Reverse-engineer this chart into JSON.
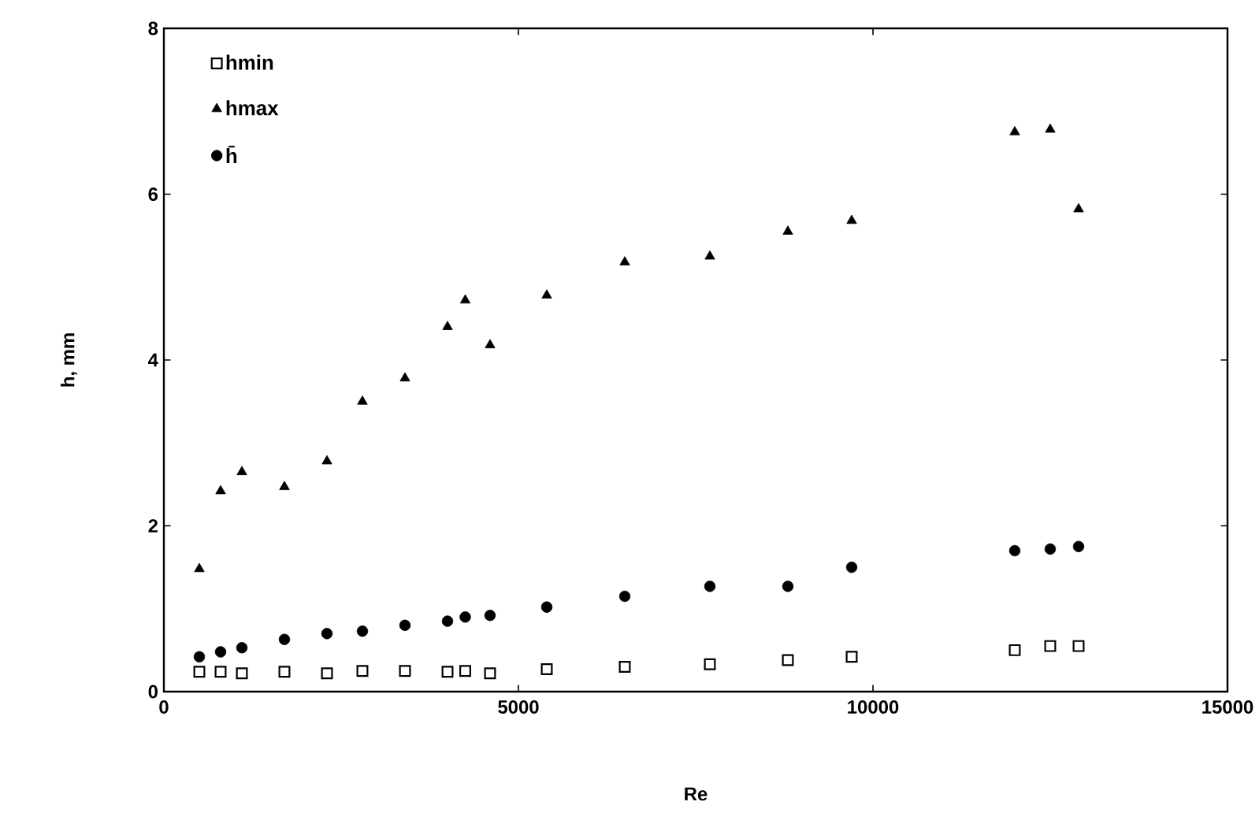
{
  "chart_data": {
    "type": "scatter",
    "xlabel": "Re",
    "ylabel": "h, mm",
    "x": [
      500,
      800,
      1100,
      1700,
      2300,
      2800,
      3400,
      4000,
      4250,
      4600,
      5400,
      6500,
      7700,
      8800,
      9700,
      12000,
      12500,
      12900
    ],
    "series": [
      {
        "name": "hmin",
        "color": "#000000",
        "marker": "square",
        "values": [
          0.24,
          0.24,
          0.22,
          0.24,
          0.22,
          0.25,
          0.25,
          0.24,
          0.25,
          0.22,
          0.27,
          0.3,
          0.33,
          0.38,
          0.42,
          0.5,
          0.55,
          0.55
        ]
      },
      {
        "name": "hmax",
        "color": "#000000",
        "marker": "triangle",
        "values": [
          1.48,
          2.42,
          2.65,
          2.47,
          2.78,
          3.5,
          3.78,
          4.4,
          4.72,
          4.18,
          4.78,
          5.18,
          5.25,
          5.55,
          5.68,
          6.75,
          6.78,
          5.82
        ]
      },
      {
        "name": "h̄",
        "color": "#000000",
        "marker": "circle",
        "values": [
          0.42,
          0.48,
          0.53,
          0.63,
          0.7,
          0.73,
          0.8,
          0.85,
          0.9,
          0.92,
          1.02,
          1.15,
          1.27,
          1.27,
          1.5,
          1.7,
          1.72,
          1.75
        ]
      }
    ],
    "xlim": [
      0,
      15000
    ],
    "ylim": [
      0,
      8
    ],
    "xticks": [
      0,
      5000,
      10000,
      15000
    ],
    "yticks": [
      0,
      2,
      4,
      6,
      8
    ],
    "grid": false,
    "legend": "top left"
  }
}
